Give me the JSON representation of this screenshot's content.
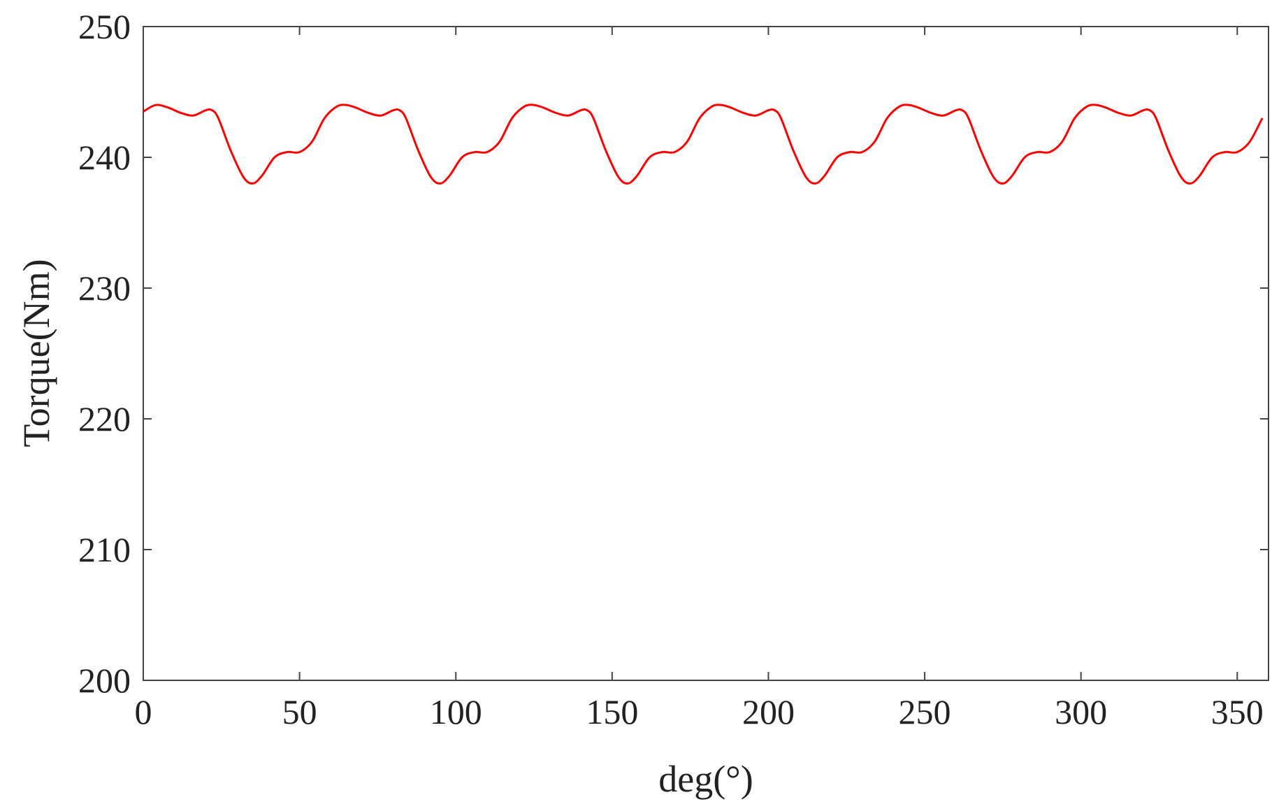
{
  "chart_data": {
    "type": "line",
    "title": "",
    "xlabel": "deg(°)",
    "ylabel": "Torque(Nm)",
    "xlim": [
      0,
      360
    ],
    "ylim": [
      200,
      250
    ],
    "xticks": [
      0,
      50,
      100,
      150,
      200,
      250,
      300,
      350
    ],
    "yticks": [
      200,
      210,
      220,
      230,
      240,
      250
    ],
    "grid": false,
    "legend": "none",
    "series": [
      {
        "color": "#ff0000",
        "x": [
          0,
          4,
          8,
          12,
          16,
          20,
          22,
          24,
          28,
          32,
          35,
          38,
          42,
          46,
          50,
          54,
          58,
          62,
          65
        ],
        "y": [
          243.5,
          244.0,
          243.8,
          243.4,
          243.2,
          243.6,
          243.6,
          243.0,
          240.5,
          238.5,
          238.0,
          238.6,
          240.0,
          240.4,
          240.4,
          241.2,
          243.0,
          243.9,
          244.0
        ],
        "period": 60,
        "x_end": 360
      }
    ]
  }
}
